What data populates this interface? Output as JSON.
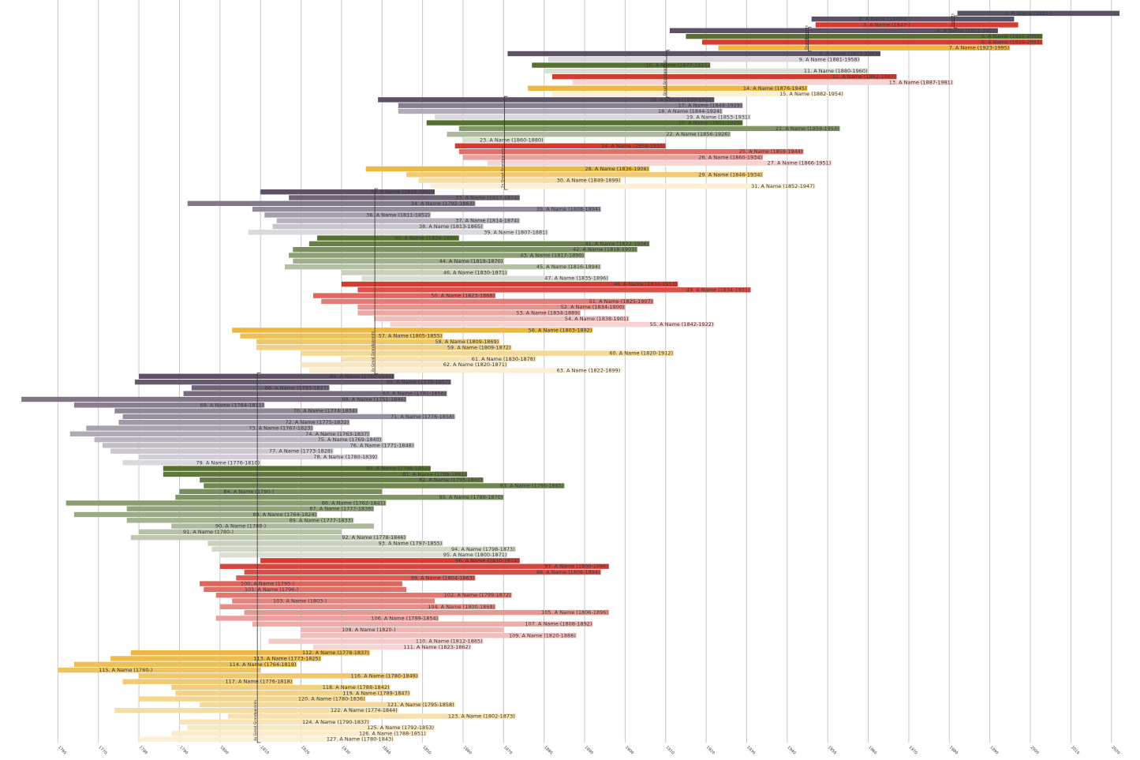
{
  "chart_data": {
    "type": "bar",
    "orientation": "horizontal timeline",
    "title": "",
    "xlabel": "",
    "ylabel": "",
    "xlim": [
      1750,
      2022
    ],
    "x_ticks": [
      1760,
      1770,
      1780,
      1790,
      1800,
      1810,
      1820,
      1830,
      1840,
      1850,
      1860,
      1870,
      1880,
      1890,
      1900,
      1910,
      1920,
      1930,
      1940,
      1950,
      1960,
      1970,
      1980,
      1990,
      2000,
      2010,
      2020
    ],
    "grid": "vertical",
    "legend": "none",
    "generation_labels": [
      {
        "label": "Parents",
        "first": 2,
        "last": 3
      },
      {
        "label": "Grandparents",
        "first": 4,
        "last": 7
      },
      {
        "label": "Great Grandparents",
        "first": 8,
        "last": 15
      },
      {
        "label": "2x Great Grandparents",
        "first": 16,
        "last": 31
      },
      {
        "label": "3x Great Grandparents",
        "first": 32,
        "last": 63
      },
      {
        "label": "4x Great Grandparents",
        "first": 64,
        "last": 127
      }
    ],
    "colors": {
      "paternal_paternal": "#5d5166",
      "paternal_maternal": "#557030",
      "maternal_paternal": "#d43c32",
      "maternal_maternal": "#ecb842"
    },
    "people": [
      {
        "id": 1,
        "label": "1. A Name (1982-)",
        "birth": 1982,
        "death": null
      },
      {
        "id": 2,
        "label": "2. A Name (1946-)",
        "birth": 1946,
        "death": null
      },
      {
        "id": 3,
        "label": "3. A Name (1947-)",
        "birth": 1947,
        "death": null
      },
      {
        "id": 4,
        "label": "4. A Name (1911-1992)",
        "birth": 1911,
        "death": 1992
      },
      {
        "id": 5,
        "label": "5. A Name (1915-2003)",
        "birth": 1915,
        "death": 2003
      },
      {
        "id": 6,
        "label": "6. A Name (1919-2003)",
        "birth": 1919,
        "death": 2003
      },
      {
        "id": 7,
        "label": "7. A Name (1923-1995)",
        "birth": 1923,
        "death": 1995
      },
      {
        "id": 8,
        "label": "8. A Name (1871-1963)",
        "birth": 1871,
        "death": 1963
      },
      {
        "id": 9,
        "label": "9. A Name (1881-1958)",
        "birth": 1881,
        "death": 1958
      },
      {
        "id": 10,
        "label": "10. A Name (1877-1921)",
        "birth": 1877,
        "death": 1921
      },
      {
        "id": 11,
        "label": "11. A Name (1880-1960)",
        "birth": 1880,
        "death": 1960
      },
      {
        "id": 12,
        "label": "12. A Name (1882-1967)",
        "birth": 1882,
        "death": 1967
      },
      {
        "id": 13,
        "label": "13. A Name (1887-1981)",
        "birth": 1887,
        "death": 1981
      },
      {
        "id": 14,
        "label": "14. A Name (1876-1945)",
        "birth": 1876,
        "death": 1945
      },
      {
        "id": 15,
        "label": "15. A Name (1882-1954)",
        "birth": 1882,
        "death": 1954
      },
      {
        "id": 16,
        "label": "16. A Name (1839-1922)",
        "birth": 1839,
        "death": 1922
      },
      {
        "id": 17,
        "label": "17. A Name (1844-1929)",
        "birth": 1844,
        "death": 1929
      },
      {
        "id": 18,
        "label": "18. A Name (1844-1924)",
        "birth": 1844,
        "death": 1924
      },
      {
        "id": 19,
        "label": "19. A Name (1853-1931)",
        "birth": 1853,
        "death": 1931
      },
      {
        "id": 20,
        "label": "20. A Name (1851-1929)",
        "birth": 1851,
        "death": 1929
      },
      {
        "id": 21,
        "label": "21. A Name (1859-1953)",
        "birth": 1859,
        "death": 1953
      },
      {
        "id": 22,
        "label": "22. A Name (1856-1926)",
        "birth": 1856,
        "death": 1926
      },
      {
        "id": 23,
        "label": "23. A Name (1860-1880)",
        "birth": 1860,
        "death": 1880
      },
      {
        "id": 24,
        "label": "24. A Name (1858-1910)",
        "birth": 1858,
        "death": 1910
      },
      {
        "id": 25,
        "label": "25. A Name (1859-1944)",
        "birth": 1859,
        "death": 1944
      },
      {
        "id": 26,
        "label": "26. A Name (1860-1934)",
        "birth": 1860,
        "death": 1934
      },
      {
        "id": 27,
        "label": "27. A Name (1866-1951)",
        "birth": 1866,
        "death": 1951
      },
      {
        "id": 28,
        "label": "28. A Name (1836-1906)",
        "birth": 1836,
        "death": 1906
      },
      {
        "id": 29,
        "label": "29. A Name (1846-1934)",
        "birth": 1846,
        "death": 1934
      },
      {
        "id": 30,
        "label": "30. A Name (1849-1899)",
        "birth": 1849,
        "death": 1899
      },
      {
        "id": 31,
        "label": "31. A Name (1852-1947)",
        "birth": 1852,
        "death": 1947
      },
      {
        "id": 32,
        "label": "32. A Name (1810-1853)",
        "birth": 1810,
        "death": 1853
      },
      {
        "id": 33,
        "label": "33. A Name (1817-1874)",
        "birth": 1817,
        "death": 1874
      },
      {
        "id": 34,
        "label": "34. A Name (1792-1863)",
        "birth": 1792,
        "death": 1863
      },
      {
        "id": 35,
        "label": "35. A Name (1808-1894)",
        "birth": 1808,
        "death": 1894
      },
      {
        "id": 36,
        "label": "36. A Name (1811-1852)",
        "birth": 1811,
        "death": 1852
      },
      {
        "id": 37,
        "label": "37. A Name (1814-1874)",
        "birth": 1814,
        "death": 1874
      },
      {
        "id": 38,
        "label": "38. A Name (1813-1865)",
        "birth": 1813,
        "death": 1865
      },
      {
        "id": 39,
        "label": "39. A Name (1807-1881)",
        "birth": 1807,
        "death": 1881
      },
      {
        "id": 40,
        "label": "40. A Name (1824-1859)",
        "birth": 1824,
        "death": 1859
      },
      {
        "id": 41,
        "label": "41. A Name (1822-1906)",
        "birth": 1822,
        "death": 1906
      },
      {
        "id": 42,
        "label": "42. A Name (1818-1903)",
        "birth": 1818,
        "death": 1903
      },
      {
        "id": 43,
        "label": "43. A Name (1817-1890)",
        "birth": 1817,
        "death": 1890
      },
      {
        "id": 44,
        "label": "44. A Name (1818-1870)",
        "birth": 1818,
        "death": 1870
      },
      {
        "id": 45,
        "label": "45. A Name (1816-1894)",
        "birth": 1816,
        "death": 1894
      },
      {
        "id": 46,
        "label": "46. A Name (1830-1871)",
        "birth": 1830,
        "death": 1871
      },
      {
        "id": 47,
        "label": "47. A Name (1835-1896)",
        "birth": 1835,
        "death": 1896
      },
      {
        "id": 48,
        "label": "48. A Name (1830-1913)",
        "birth": 1830,
        "death": 1913
      },
      {
        "id": 49,
        "label": "49. A Name (1834-1931)",
        "birth": 1834,
        "death": 1931
      },
      {
        "id": 50,
        "label": "50. A Name (1823-1868)",
        "birth": 1823,
        "death": 1868
      },
      {
        "id": 51,
        "label": "51. A Name (1825-1907)",
        "birth": 1825,
        "death": 1907
      },
      {
        "id": 52,
        "label": "52. A Name (1834-1900)",
        "birth": 1834,
        "death": 1900
      },
      {
        "id": 53,
        "label": "53. A Name (1834-1889)",
        "birth": 1834,
        "death": 1889
      },
      {
        "id": 54,
        "label": "54. A Name (1838-1901)",
        "birth": 1838,
        "death": 1901
      },
      {
        "id": 55,
        "label": "55. A Name (1842-1922)",
        "birth": 1842,
        "death": 1922
      },
      {
        "id": 56,
        "label": "56. A Name (1803-1892)",
        "birth": 1803,
        "death": 1892
      },
      {
        "id": 57,
        "label": "57. A Name (1805-1855)",
        "birth": 1805,
        "death": 1855
      },
      {
        "id": 58,
        "label": "58. A Name (1809-1869)",
        "birth": 1809,
        "death": 1869
      },
      {
        "id": 59,
        "label": "59. A Name (1809-1872)",
        "birth": 1809,
        "death": 1872
      },
      {
        "id": 60,
        "label": "60. A Name (1820-1912)",
        "birth": 1820,
        "death": 1912
      },
      {
        "id": 61,
        "label": "61. A Name (1830-1878)",
        "birth": 1830,
        "death": 1878
      },
      {
        "id": 62,
        "label": "62. A Name (1820-1871)",
        "birth": 1820,
        "death": 1871
      },
      {
        "id": 63,
        "label": "63. A Name (1822-1899)",
        "birth": 1822,
        "death": 1899
      },
      {
        "id": 64,
        "label": "64. A Name (1780-1843)",
        "birth": 1780,
        "death": 1843
      },
      {
        "id": 65,
        "label": "65. A Name (1779-1857)",
        "birth": 1779,
        "death": 1857
      },
      {
        "id": 66,
        "label": "66. A Name (1793-1827)",
        "birth": 1793,
        "death": 1827
      },
      {
        "id": 67,
        "label": "67. A Name (1791-1856)",
        "birth": 1791,
        "death": 1856
      },
      {
        "id": 68,
        "label": "68. A Name (1751-1846)",
        "birth": 1751,
        "death": 1846
      },
      {
        "id": 69,
        "label": "69. A Name (1764-1811)",
        "birth": 1764,
        "death": 1811
      },
      {
        "id": 70,
        "label": "70. A Name (1774-1834)",
        "birth": 1774,
        "death": 1834
      },
      {
        "id": 71,
        "label": "71. A Name (1776-1858)",
        "birth": 1776,
        "death": 1858
      },
      {
        "id": 72,
        "label": "72. A Name (1775-1832)",
        "birth": 1775,
        "death": 1832
      },
      {
        "id": 73,
        "label": "73. A Name (1767-1823)",
        "birth": 1767,
        "death": 1823
      },
      {
        "id": 74,
        "label": "74. A Name (1763-1837)",
        "birth": 1763,
        "death": 1837
      },
      {
        "id": 75,
        "label": "75. A Name (1769-1840)",
        "birth": 1769,
        "death": 1840
      },
      {
        "id": 76,
        "label": "76. A Name (1771-1848)",
        "birth": 1771,
        "death": 1848
      },
      {
        "id": 77,
        "label": "77. A Name (1773-1828)",
        "birth": 1773,
        "death": 1828
      },
      {
        "id": 78,
        "label": "78. A Name (1780-1839)",
        "birth": 1780,
        "death": 1839
      },
      {
        "id": 79,
        "label": "79. A Name (1776-1810)",
        "birth": 1776,
        "death": 1810
      },
      {
        "id": 80,
        "label": "80. A Name (1786-1852)",
        "birth": 1786,
        "death": 1852
      },
      {
        "id": 81,
        "label": "81. A Name (1786-1861)",
        "birth": 1786,
        "death": 1861
      },
      {
        "id": 82,
        "label": "82. A Name (1795-1865)",
        "birth": 1795,
        "death": 1865
      },
      {
        "id": 83,
        "label": "83. A Name (1796-1885)",
        "birth": 1796,
        "death": 1885
      },
      {
        "id": 84,
        "label": "84. A Name (1790-)",
        "birth": 1790,
        "death": null
      },
      {
        "id": 85,
        "label": "85. A Name (1789-1870)",
        "birth": 1789,
        "death": 1870
      },
      {
        "id": 86,
        "label": "86. A Name (1762-1841)",
        "birth": 1762,
        "death": 1841
      },
      {
        "id": 87,
        "label": "87. A Name (1777-1838)",
        "birth": 1777,
        "death": 1838
      },
      {
        "id": 88,
        "label": "88. A Name (1764-1824)",
        "birth": 1764,
        "death": 1824
      },
      {
        "id": 89,
        "label": "89. A Name (1777-1833)",
        "birth": 1777,
        "death": 1833
      },
      {
        "id": 90,
        "label": "90. A Name (1788-)",
        "birth": 1788,
        "death": null
      },
      {
        "id": 91,
        "label": "91. A Name (1780-)",
        "birth": 1780,
        "death": null
      },
      {
        "id": 92,
        "label": "92. A Name (1778-1846)",
        "birth": 1778,
        "death": 1846
      },
      {
        "id": 93,
        "label": "93. A Name (1797-1855)",
        "birth": 1797,
        "death": 1855
      },
      {
        "id": 94,
        "label": "94. A Name (1798-1873)",
        "birth": 1798,
        "death": 1873
      },
      {
        "id": 95,
        "label": "95. A Name (1800-1871)",
        "birth": 1800,
        "death": 1871
      },
      {
        "id": 96,
        "label": "96. A Name (1810-1874)",
        "birth": 1810,
        "death": 1874
      },
      {
        "id": 97,
        "label": "97. A Name (1800-1896)",
        "birth": 1800,
        "death": 1896
      },
      {
        "id": 98,
        "label": "98. A Name (1806-1894)",
        "birth": 1806,
        "death": 1894
      },
      {
        "id": 99,
        "label": "99. A Name (1804-1863)",
        "birth": 1804,
        "death": 1863
      },
      {
        "id": 100,
        "label": "100. A Name (1795-)",
        "birth": 1795,
        "death": null
      },
      {
        "id": 101,
        "label": "101. A Name (1796-)",
        "birth": 1796,
        "death": null
      },
      {
        "id": 102,
        "label": "102. A Name (1799-1872)",
        "birth": 1799,
        "death": 1872
      },
      {
        "id": 103,
        "label": "103. A Name (1803-)",
        "birth": 1803,
        "death": null
      },
      {
        "id": 104,
        "label": "104. A Name (1800-1868)",
        "birth": 1800,
        "death": 1868
      },
      {
        "id": 105,
        "label": "105. A Name (1806-1896)",
        "birth": 1806,
        "death": 1896
      },
      {
        "id": 106,
        "label": "106. A Name (1799-1854)",
        "birth": 1799,
        "death": 1854
      },
      {
        "id": 107,
        "label": "107. A Name (1808-1892)",
        "birth": 1808,
        "death": 1892
      },
      {
        "id": 108,
        "label": "108. A Name (1820-)",
        "birth": 1820,
        "death": null
      },
      {
        "id": 109,
        "label": "109. A Name (1820-1888)",
        "birth": 1820,
        "death": 1888
      },
      {
        "id": 110,
        "label": "110. A Name (1812-1865)",
        "birth": 1812,
        "death": 1865
      },
      {
        "id": 111,
        "label": "111. A Name (1823-1862)",
        "birth": 1823,
        "death": 1862
      },
      {
        "id": 112,
        "label": "112. A Name (1778-1837)",
        "birth": 1778,
        "death": 1837
      },
      {
        "id": 113,
        "label": "113. A Name (1773-1825)",
        "birth": 1773,
        "death": 1825
      },
      {
        "id": 114,
        "label": "114. A Name (1764-1819)",
        "birth": 1764,
        "death": 1819
      },
      {
        "id": 115,
        "label": "115. A Name (1760-)",
        "birth": 1760,
        "death": null
      },
      {
        "id": 116,
        "label": "116. A Name (1780-1849)",
        "birth": 1780,
        "death": 1849
      },
      {
        "id": 117,
        "label": "117. A Name (1776-1818)",
        "birth": 1776,
        "death": 1818
      },
      {
        "id": 118,
        "label": "118. A Name (1788-1842)",
        "birth": 1788,
        "death": 1842
      },
      {
        "id": 119,
        "label": "119. A Name (1789-1847)",
        "birth": 1789,
        "death": 1847
      },
      {
        "id": 120,
        "label": "120. A Name (1780-1836)",
        "birth": 1780,
        "death": 1836
      },
      {
        "id": 121,
        "label": "121. A Name (1795-1858)",
        "birth": 1795,
        "death": 1858
      },
      {
        "id": 122,
        "label": "122. A Name (1774-1844)",
        "birth": 1774,
        "death": 1844
      },
      {
        "id": 123,
        "label": "123. A Name (1802-1873)",
        "birth": 1802,
        "death": 1873
      },
      {
        "id": 124,
        "label": "124. A Name (1790-1837)",
        "birth": 1790,
        "death": 1837
      },
      {
        "id": 125,
        "label": "125. A Name (1792-1853)",
        "birth": 1792,
        "death": 1853
      },
      {
        "id": 126,
        "label": "126. A Name (1788-1851)",
        "birth": 1788,
        "death": 1851
      },
      {
        "id": 127,
        "label": "127. A Name (1780-1843)",
        "birth": 1780,
        "death": 1843
      }
    ]
  }
}
